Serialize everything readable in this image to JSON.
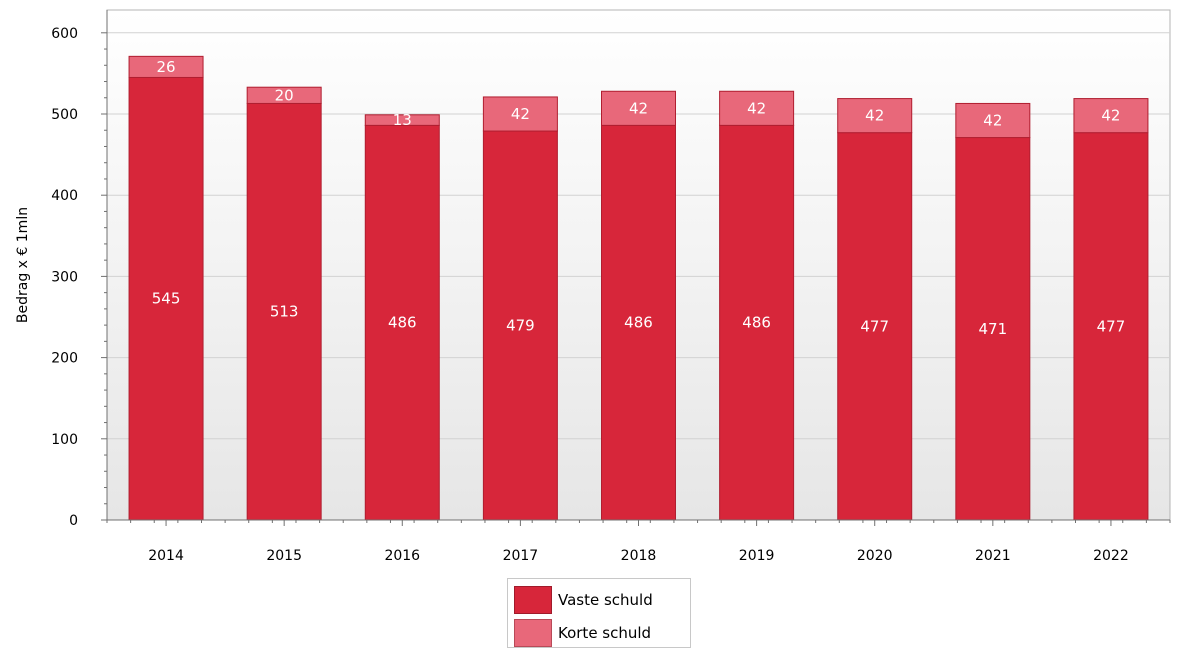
{
  "chart_data": {
    "type": "bar",
    "stacked": true,
    "title": "",
    "xlabel": "",
    "ylabel": "Bedrag x € 1mln",
    "ylim": [
      0,
      600
    ],
    "yticks": [
      0,
      100,
      200,
      300,
      400,
      500,
      600
    ],
    "grid": true,
    "legend_position": "bottom",
    "categories": [
      "2014",
      "2015",
      "2016",
      "2017",
      "2018",
      "2019",
      "2020",
      "2021",
      "2022"
    ],
    "series": [
      {
        "name": "Vaste schuld",
        "color": "#d7263a",
        "values": [
          545,
          513,
          486,
          479,
          486,
          486,
          477,
          471,
          477
        ]
      },
      {
        "name": "Korte schuld",
        "color": "#e8687a",
        "values": [
          26,
          20,
          13,
          42,
          42,
          42,
          42,
          42,
          42
        ]
      }
    ]
  }
}
